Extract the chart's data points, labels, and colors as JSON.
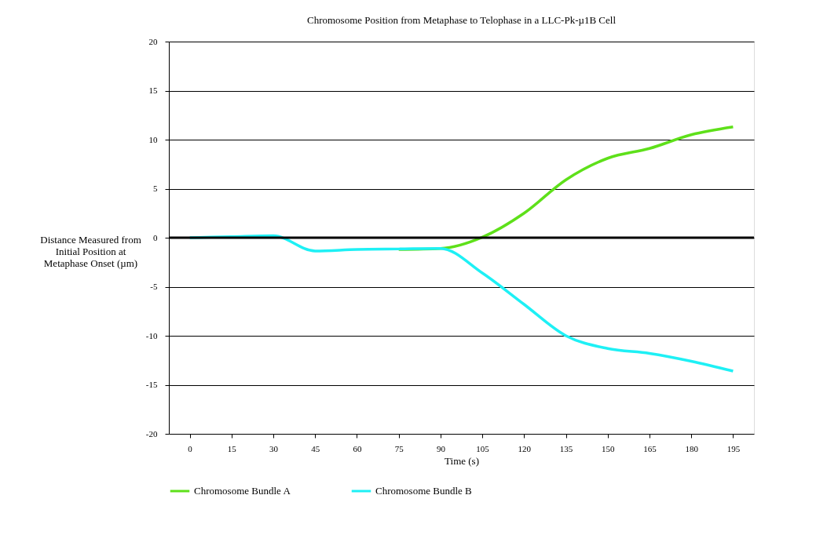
{
  "chart_data": {
    "type": "line",
    "title": "Chromosome Position from Metaphase to Telophase in a LLC-Pk-µ1B Cell",
    "xlabel": "Time (s)",
    "ylabel": "Distance Measured from\nInitial Position at\nMetaphase Onset (µm)",
    "categories": [
      "0",
      "15",
      "30",
      "45",
      "60",
      "75",
      "90",
      "105",
      "120",
      "135",
      "150",
      "165",
      "180",
      "195"
    ],
    "series": [
      {
        "name": "Chromosome Bundle A",
        "color": "#5ee01a",
        "values": [
          null,
          null,
          null,
          null,
          null,
          -1.2,
          -1.1,
          0.05,
          2.5,
          5.9,
          8.1,
          9.1,
          10.5,
          11.3
        ]
      },
      {
        "name": "Chromosome Bundle B",
        "color": "#1ef0f5",
        "values": [
          0,
          0.1,
          0.2,
          -1.35,
          -1.2,
          -1.15,
          -1.1,
          -3.6,
          -6.8,
          -10,
          -11.3,
          -11.8,
          -12.6,
          -13.6
        ]
      }
    ],
    "ylim": [
      -20,
      20
    ],
    "yticks": [
      -20,
      -15,
      -10,
      -5,
      0,
      5,
      10,
      15,
      20
    ],
    "grid": "y",
    "legend": "bottom",
    "marker": "none",
    "line_style": "solid",
    "ref_lines": [
      {
        "axis": "y",
        "value": 0,
        "color": "#000000"
      }
    ]
  }
}
